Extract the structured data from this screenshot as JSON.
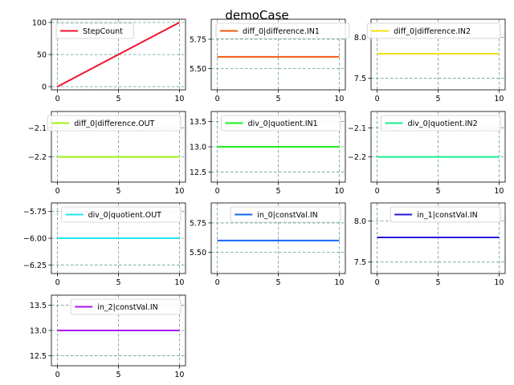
{
  "figure": {
    "title": "demoCase"
  },
  "chart_data": [
    {
      "type": "line",
      "series": [
        {
          "name": "StepCount",
          "color": "#f0142f",
          "x": [
            0,
            10
          ],
          "y": [
            0,
            100
          ]
        }
      ],
      "xlim": [
        -0.5,
        10.5
      ],
      "ylim": [
        -5,
        105
      ],
      "xticks": [
        0,
        5,
        10
      ],
      "yticks": [
        0,
        50,
        100
      ],
      "grid": true,
      "legend": "top-left"
    },
    {
      "type": "line",
      "series": [
        {
          "name": "diff_0|difference.IN1",
          "color": "#f05a0f",
          "x": [
            0,
            10
          ],
          "y": [
            5.6,
            5.6
          ]
        }
      ],
      "xlim": [
        -0.5,
        10.5
      ],
      "ylim": [
        5.32,
        5.92
      ],
      "xticks": [
        0,
        5,
        10
      ],
      "yticks": [
        5.5,
        5.75
      ],
      "ytick_labels": [
        "5.50",
        "5.75"
      ],
      "grid": true,
      "legend": "top-left"
    },
    {
      "type": "line",
      "series": [
        {
          "name": "diff_0|difference.IN2",
          "color": "#f5e10a",
          "x": [
            0,
            10
          ],
          "y": [
            7.8,
            7.8
          ]
        }
      ],
      "xlim": [
        -0.5,
        10.5
      ],
      "ylim": [
        7.36,
        8.22
      ],
      "xticks": [
        0,
        5,
        10
      ],
      "yticks": [
        7.5,
        8.0
      ],
      "ytick_labels": [
        "7.5",
        "8.0"
      ],
      "grid": true,
      "legend": "top-right"
    },
    {
      "type": "line",
      "series": [
        {
          "name": "diff_0|difference.OUT",
          "color": "#a0f014",
          "x": [
            0,
            10
          ],
          "y": [
            -2.2,
            -2.2
          ]
        }
      ],
      "xlim": [
        -0.5,
        10.5
      ],
      "ylim": [
        -2.287,
        -2.043
      ],
      "xticks": [
        0,
        5,
        10
      ],
      "yticks": [
        -2.2,
        -2.1
      ],
      "ytick_labels": [
        "−2.2",
        "−2.1"
      ],
      "grid": true,
      "legend": "top-right"
    },
    {
      "type": "line",
      "series": [
        {
          "name": "div_0|quotient.IN1",
          "color": "#1ef01e",
          "x": [
            0,
            10
          ],
          "y": [
            13,
            13
          ]
        }
      ],
      "xlim": [
        -0.5,
        10.5
      ],
      "ylim": [
        12.3,
        13.7
      ],
      "xticks": [
        0,
        5,
        10
      ],
      "yticks": [
        12.5,
        13.0,
        13.5
      ],
      "ytick_labels": [
        "12.5",
        "13.0",
        "13.5"
      ],
      "grid": true,
      "legend": "top-right"
    },
    {
      "type": "line",
      "series": [
        {
          "name": "div_0|quotient.IN2",
          "color": "#14f08c",
          "x": [
            0,
            10
          ],
          "y": [
            -2.2,
            -2.2
          ]
        }
      ],
      "xlim": [
        -0.5,
        10.5
      ],
      "ylim": [
        -2.287,
        -2.043
      ],
      "xticks": [
        0,
        5,
        10
      ],
      "yticks": [
        -2.2,
        -2.1
      ],
      "ytick_labels": [
        "−2.2",
        "−2.1"
      ],
      "grid": true,
      "legend": "top-right"
    },
    {
      "type": "line",
      "series": [
        {
          "name": "div_0|quotient.OUT",
          "color": "#1ee6f0",
          "x": [
            0,
            10
          ],
          "y": [
            -6,
            -6
          ]
        }
      ],
      "xlim": [
        -0.5,
        10.5
      ],
      "ylim": [
        -6.33,
        -5.67
      ],
      "xticks": [
        0,
        5,
        10
      ],
      "yticks": [
        -6.25,
        -6.0,
        -5.75
      ],
      "ytick_labels": [
        "−6.25",
        "−6.00",
        "−5.75"
      ],
      "grid": true,
      "legend": "top-right"
    },
    {
      "type": "line",
      "series": [
        {
          "name": "in_0|constVal.IN",
          "color": "#1464f0",
          "x": [
            0,
            10
          ],
          "y": [
            5.6,
            5.6
          ]
        }
      ],
      "xlim": [
        -0.5,
        10.5
      ],
      "ylim": [
        5.32,
        5.92
      ],
      "xticks": [
        0,
        5,
        10
      ],
      "yticks": [
        5.5,
        5.75
      ],
      "ytick_labels": [
        "5.50",
        "5.75"
      ],
      "grid": true,
      "legend": "top-right"
    },
    {
      "type": "line",
      "series": [
        {
          "name": "in_1|constVal.IN",
          "color": "#2814dc",
          "x": [
            0,
            10
          ],
          "y": [
            7.8,
            7.8
          ]
        }
      ],
      "xlim": [
        -0.5,
        10.5
      ],
      "ylim": [
        7.36,
        8.22
      ],
      "xticks": [
        0,
        5,
        10
      ],
      "yticks": [
        7.5,
        8.0
      ],
      "ytick_labels": [
        "7.5",
        "8.0"
      ],
      "grid": true,
      "legend": "top-right"
    },
    {
      "type": "line",
      "series": [
        {
          "name": "in_2|constVal.IN",
          "color": "#aa14f0",
          "x": [
            0,
            10
          ],
          "y": [
            13,
            13
          ]
        }
      ],
      "xlim": [
        -0.5,
        10.5
      ],
      "ylim": [
        12.3,
        13.7
      ],
      "xticks": [
        0,
        5,
        10
      ],
      "yticks": [
        12.5,
        13.0,
        13.5
      ],
      "ytick_labels": [
        "12.5",
        "13.0",
        "13.5"
      ],
      "grid": true,
      "legend": "top-right"
    }
  ]
}
